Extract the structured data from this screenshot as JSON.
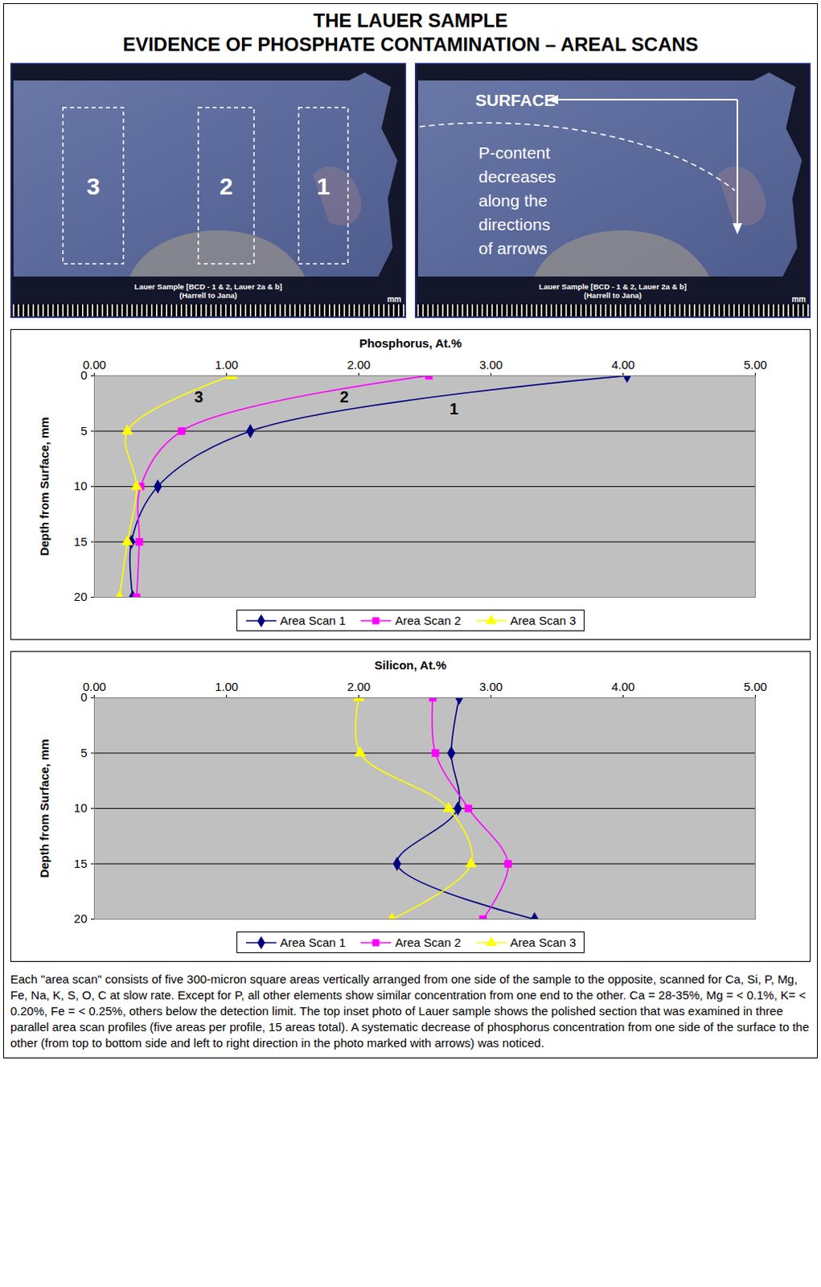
{
  "title": "THE LAUER SAMPLE",
  "subtitle": "EVIDENCE OF PHOSPHATE CONTAMINATION – AREAL SCANS",
  "photos": {
    "area_labels": [
      "3",
      "2",
      "1"
    ],
    "surface_label": "SURFACE",
    "arrow_note": [
      "P-content",
      "decreases",
      "along the",
      "directions",
      "of arrows"
    ],
    "sample_caption": [
      "Lauer Sample [BCD - 1 & 2, Lauer 2a & b]",
      "(Harrell to Jana)"
    ],
    "scale_unit": "mm"
  },
  "chart_data": [
    {
      "type": "line",
      "title": "Phosphorus, At.%",
      "ylabel": "Depth from Surface, mm",
      "y": [
        0,
        5,
        10,
        15,
        20
      ],
      "xlim": [
        0,
        5
      ],
      "xticks": [
        {
          "value": 0,
          "label": "0.00"
        },
        {
          "value": 1,
          "label": "1.00"
        },
        {
          "value": 2,
          "label": "2.00"
        },
        {
          "value": 3,
          "label": "3.00"
        },
        {
          "value": 4,
          "label": "4.00"
        },
        {
          "value": 5,
          "label": "5.00"
        }
      ],
      "ylim": [
        0,
        20
      ],
      "yticks": [
        0,
        5,
        10,
        15,
        20
      ],
      "grid": true,
      "legend": "bottom",
      "line_style": "smooth",
      "series": [
        {
          "name": "Area Scan 1",
          "color": "#000080",
          "marker": "diamond",
          "values": [
            4.03,
            1.18,
            0.48,
            0.28,
            0.29
          ]
        },
        {
          "name": "Area Scan 2",
          "color": "#ff00ff",
          "marker": "square",
          "values": [
            2.53,
            0.66,
            0.35,
            0.34,
            0.32
          ]
        },
        {
          "name": "Area Scan 3",
          "color": "#ffff00",
          "marker": "triangle",
          "values": [
            1.04,
            0.25,
            0.32,
            0.25,
            0.19
          ]
        }
      ],
      "annotations": [
        {
          "text": "3",
          "x": 0.79,
          "y": 1.95
        },
        {
          "text": "2",
          "x": 1.89,
          "y": 1.95
        },
        {
          "text": "1",
          "x": 2.72,
          "y": 3.05
        }
      ]
    },
    {
      "type": "line",
      "title": "Silicon, At.%",
      "ylabel": "Depth from Surface, mm",
      "y": [
        0,
        5,
        10,
        15,
        20
      ],
      "xlim": [
        0,
        5
      ],
      "xticks": [
        {
          "value": 0,
          "label": "0.00"
        },
        {
          "value": 1,
          "label": "1.00"
        },
        {
          "value": 2,
          "label": "2.00"
        },
        {
          "value": 3,
          "label": "3.00"
        },
        {
          "value": 4,
          "label": "4.00"
        },
        {
          "value": 5,
          "label": "5.00"
        }
      ],
      "ylim": [
        0,
        20
      ],
      "yticks": [
        0,
        5,
        10,
        15,
        20
      ],
      "grid": true,
      "legend": "bottom",
      "line_style": "smooth",
      "series": [
        {
          "name": "Area Scan 1",
          "color": "#000080",
          "marker": "diamond",
          "values": [
            2.76,
            2.7,
            2.75,
            2.29,
            3.33
          ]
        },
        {
          "name": "Area Scan 2",
          "color": "#ff00ff",
          "marker": "square",
          "values": [
            2.56,
            2.58,
            2.83,
            3.13,
            2.94
          ]
        },
        {
          "name": "Area Scan 3",
          "color": "#ffff00",
          "marker": "triangle",
          "values": [
            2.0,
            2.01,
            2.68,
            2.85,
            2.25
          ]
        }
      ]
    }
  ],
  "caption": "Each \"area scan\" consists of five 300-micron square areas vertically arranged from one side of the sample to the opposite, scanned for Ca, Si, P, Mg, Fe, Na, K, S, O, C at slow rate. Except for P, all other elements show similar concentration from one end to the other. Ca = 28-35%, Mg = < 0.1%, K= < 0.20%, Fe = < 0.25%, others below the detection limit. The top inset photo of Lauer sample shows the polished section that was examined in three parallel area scan profiles (five areas per profile, 15 areas total). A systematic decrease of phosphorus concentration from one side of the surface to the other (from top to bottom side and left to right direction in the photo marked with arrows) was noticed."
}
